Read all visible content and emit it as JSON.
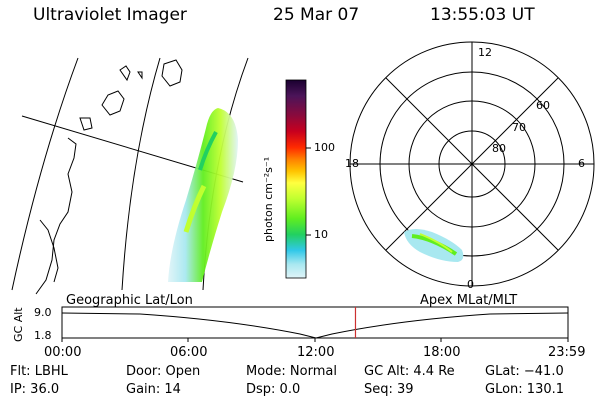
{
  "header": {
    "instrument": "Ultraviolet Imager",
    "date": "25 Mar 07",
    "time": "13:55:03 UT"
  },
  "colorbar": {
    "unit_label": "photon cm⁻²s⁻¹",
    "ticks": [
      "100",
      "10"
    ],
    "colors": [
      "#1a0030",
      "#4b1459",
      "#8b0a3c",
      "#c8001e",
      "#ff2a00",
      "#ff8000",
      "#ffc300",
      "#ffff40",
      "#c0ff30",
      "#60ee20",
      "#22d060",
      "#30d0b0",
      "#30c8e8",
      "#a8e8f0",
      "#e0f4f8"
    ]
  },
  "polar_plot": {
    "mlt_labels": {
      "top": "12",
      "left": "18",
      "right": "6",
      "bottom": "0"
    },
    "lat_labels": [
      "60",
      "70",
      "80"
    ]
  },
  "timeline": {
    "left_title": "Geographic Lat/Lon",
    "right_title": "Apex MLat/MLT",
    "axis_label": "GC Alt",
    "y_top": "9.0",
    "y_bottom": "1.8",
    "x_ticks": [
      "00:00",
      "06:00",
      "12:00",
      "18:00",
      "23:59"
    ],
    "marker_time_fraction": 0.58,
    "marker_color": "#cc3030"
  },
  "status": {
    "flt": "Flt: LBHL",
    "ip": "IP: 36.0",
    "door": "Door: Open",
    "gain": "Gain: 14",
    "mode": "Mode: Normal",
    "dsp": "Dsp:    0.0",
    "gc_alt": "GC Alt: 4.4 Re",
    "seq": "Seq: 39",
    "glat": "GLat: −41.0",
    "glon": "GLon: 130.1"
  }
}
